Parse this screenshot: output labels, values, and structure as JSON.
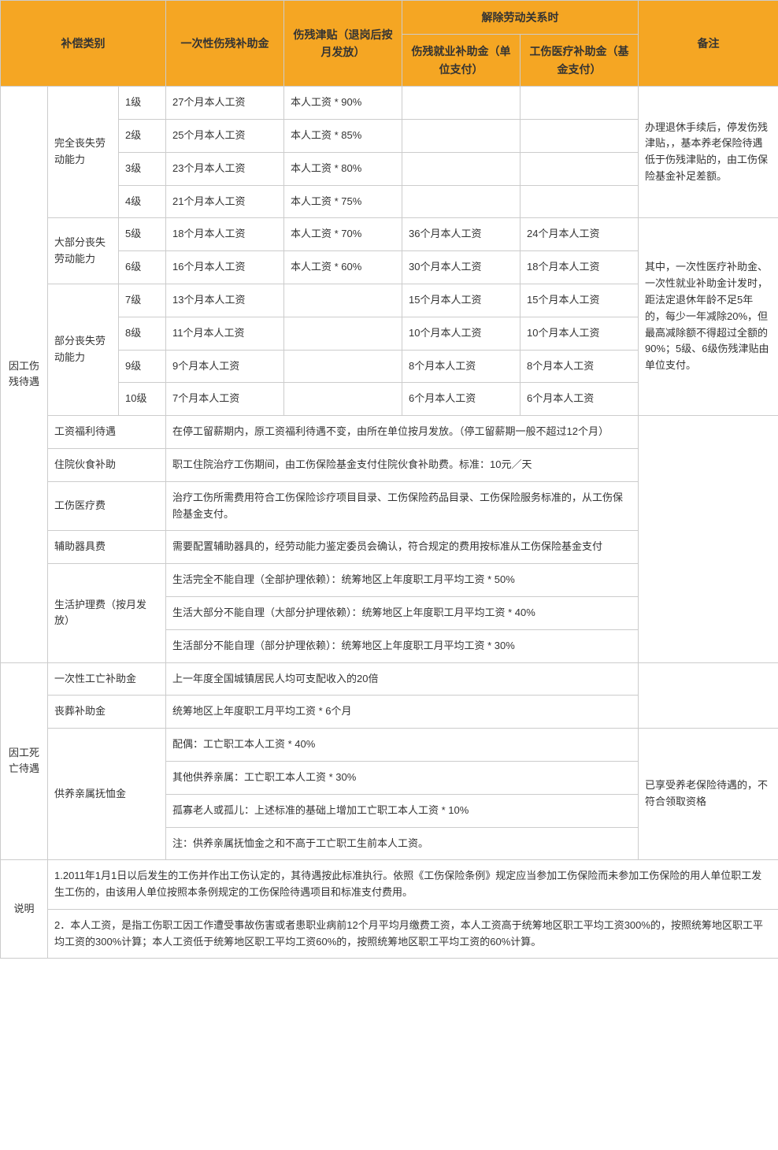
{
  "colors": {
    "header_bg": "#f5a623",
    "border": "#cccccc",
    "text": "#333333",
    "bg": "#ffffff"
  },
  "font": {
    "family": "Microsoft YaHei",
    "body_size": 13,
    "header_size": 14
  },
  "header": {
    "col1": "补偿类别",
    "col2": "一次性伤残补助金",
    "col3": "伤残津贴（退岗后按月发放）",
    "col4_group": "解除劳动关系时",
    "col4a": "伤残就业补助金（单位支付）",
    "col4b": "工伤医疗补助金（基金支付）",
    "col5": "备注"
  },
  "section1": {
    "title": "因工伤残待遇",
    "g1": {
      "label": "完全丧失劳动能力",
      "r1": {
        "lv": "1级",
        "a": "27个月本人工资",
        "b": "本人工资 * 90%"
      },
      "r2": {
        "lv": "2级",
        "a": "25个月本人工资",
        "b": "本人工资 * 85%"
      },
      "r3": {
        "lv": "3级",
        "a": "23个月本人工资",
        "b": "本人工资 * 80%"
      },
      "r4": {
        "lv": "4级",
        "a": "21个月本人工资",
        "b": "本人工资 * 75%"
      },
      "note": "办理退休手续后，停发伤残津贴，，基本养老保险待遇低于伤残津贴的，由工伤保险基金补足差额。"
    },
    "g2": {
      "label": "大部分丧失劳动能力",
      "r5": {
        "lv": "5级",
        "a": "18个月本人工资",
        "b": "本人工资 * 70%",
        "c": "36个月本人工资",
        "d": "24个月本人工资"
      },
      "r6": {
        "lv": "6级",
        "a": "16个月本人工资",
        "b": "本人工资 * 60%",
        "c": "30个月本人工资",
        "d": "18个月本人工资"
      },
      "note": "其中，一次性医疗补助金、一次性就业补助金计发时，距法定退休年龄不足5年的，每少一年减除20%，但最高减除额不得超过全额的90%；5级、6级伤残津贴由单位支付。"
    },
    "g3": {
      "label": "部分丧失劳动能力",
      "r7": {
        "lv": "7级",
        "a": "13个月本人工资",
        "c": "15个月本人工资",
        "d": "15个月本人工资"
      },
      "r8": {
        "lv": "8级",
        "a": "11个月本人工资",
        "c": "10个月本人工资",
        "d": "10个月本人工资"
      },
      "r9": {
        "lv": "9级",
        "a": "9个月本人工资",
        "c": "8个月本人工资",
        "d": "8个月本人工资"
      },
      "r10": {
        "lv": "10级",
        "a": "7个月本人工资",
        "c": "6个月本人工资",
        "d": "6个月本人工资"
      }
    },
    "extra": {
      "r1": {
        "label": "工资福利待遇",
        "text": "在停工留薪期内，原工资福利待遇不变，由所在单位按月发放。（停工留薪期一般不超过12个月）"
      },
      "r2": {
        "label": "住院伙食补助",
        "text": "职工住院治疗工伤期间，由工伤保险基金支付住院伙食补助费。标准：10元／天"
      },
      "r3": {
        "label": "工伤医疗费",
        "text": "治疗工伤所需费用符合工伤保险诊疗项目目录、工伤保险药品目录、工伤保险服务标准的，从工伤保险基金支付。"
      },
      "r4": {
        "label": "辅助器具费",
        "text": "需要配置辅助器具的，经劳动能力鉴定委员会确认，符合规定的费用按标准从工伤保险基金支付"
      },
      "r5": {
        "label": "生活护理费（按月发放）",
        "a": "生活完全不能自理（全部护理依赖）：统筹地区上年度职工月平均工资 * 50%",
        "b": "生活大部分不能自理（大部分护理依赖）：统筹地区上年度职工月平均工资 * 40%",
        "c": "生活部分不能自理（部分护理依赖）：统筹地区上年度职工月平均工资 * 30%"
      }
    }
  },
  "section2": {
    "title": "因工死亡待遇",
    "r1": {
      "label": "一次性工亡补助金",
      "text": "上一年度全国城镇居民人均可支配收入的20倍"
    },
    "r2": {
      "label": "丧葬补助金",
      "text": "统筹地区上年度职工月平均工资 * 6个月"
    },
    "r3": {
      "label": "供养亲属抚恤金",
      "a": "配偶：工亡职工本人工资 * 40%",
      "b": "其他供养亲属：工亡职工本人工资 * 30%",
      "c": "孤寡老人或孤儿：上述标准的基础上增加工亡职工本人工资 * 10%",
      "d": "注：供养亲属抚恤金之和不高于工亡职工生前本人工资。",
      "note": "已享受养老保险待遇的，不符合领取资格"
    }
  },
  "section3": {
    "title": "说明",
    "r1": "1.2011年1月1日以后发生的工伤并作出工伤认定的，其待遇按此标准执行。依照《工伤保险条例》规定应当参加工伤保险而未参加工伤保险的用人单位职工发生工伤的，由该用人单位按照本条例规定的工伤保险待遇项目和标准支付费用。",
    "r2": "2．本人工资，是指工伤职工因工作遭受事故伤害或者患职业病前12个月平均月缴费工资，本人工资高于统筹地区职工平均工资300%的，按照统筹地区职工平均工资的300%计算；本人工资低于统筹地区职工平均工资60%的，按照统筹地区职工平均工资的60%计算。"
  }
}
